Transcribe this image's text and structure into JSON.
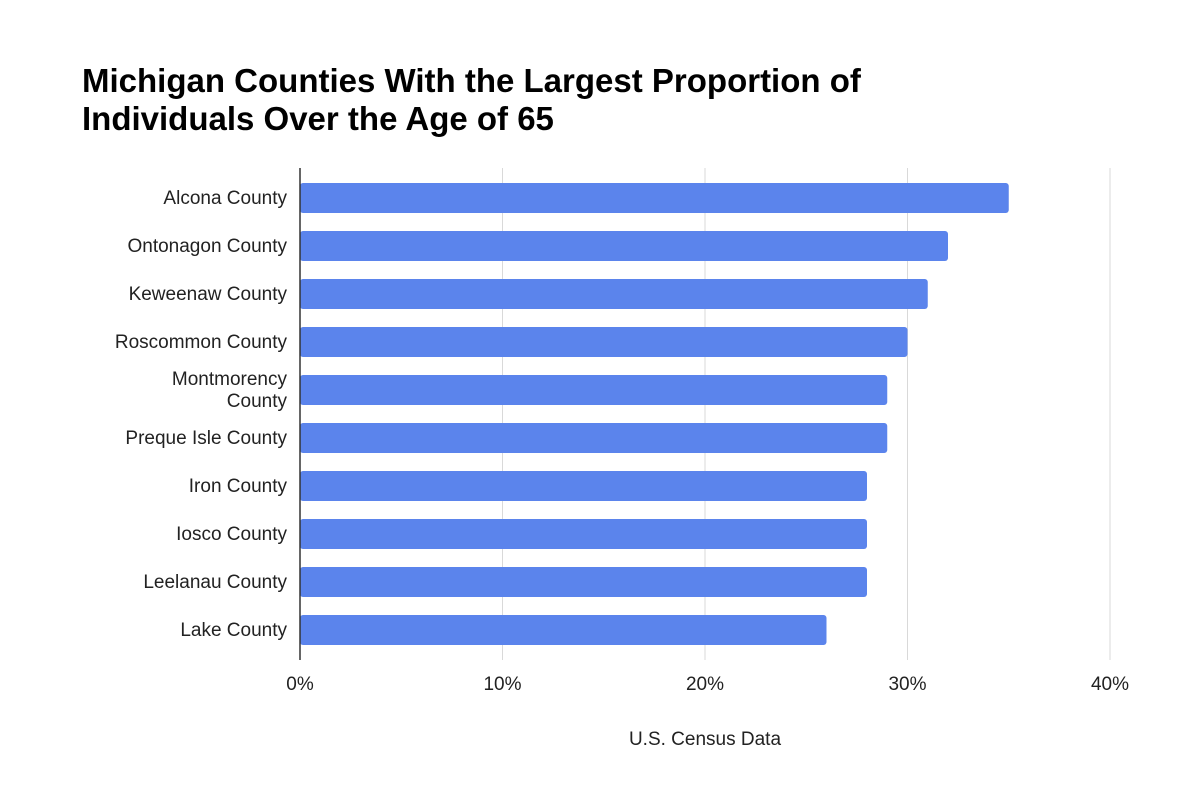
{
  "chart_data": {
    "type": "bar",
    "orientation": "horizontal",
    "title_lines": [
      "Michigan Counties With the Largest Proportion of",
      "Individuals Over the Age of 65"
    ],
    "categories": [
      [
        "Alcona County"
      ],
      [
        "Ontonagon County"
      ],
      [
        "Keweenaw County"
      ],
      [
        "Roscommon County"
      ],
      [
        "Montmorency",
        "County"
      ],
      [
        "Preque Isle County"
      ],
      [
        "Iron County"
      ],
      [
        "Iosco County"
      ],
      [
        "Leelanau County"
      ],
      [
        "Lake County"
      ]
    ],
    "values": [
      35,
      32,
      31,
      30,
      29,
      29,
      28,
      28,
      28,
      26
    ],
    "xlabel": "U.S. Census Data",
    "ylabel": "",
    "xlim": [
      0,
      40
    ],
    "ticks": [
      0,
      10,
      20,
      30,
      40
    ],
    "tick_labels": [
      "0%",
      "10%",
      "20%",
      "30%",
      "40%"
    ],
    "grid": true,
    "legend": "none",
    "bar_color": "#5b84ec"
  }
}
